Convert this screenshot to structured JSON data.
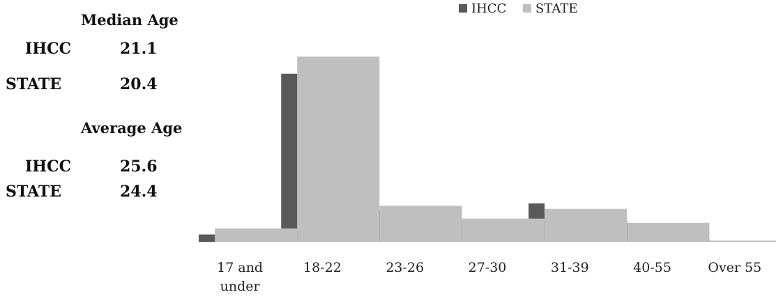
{
  "stats": {
    "median": {
      "heading": "Median Age",
      "ihcc_label": "IHCC",
      "ihcc_value": "21.1",
      "state_label": "STATE",
      "state_value": "20.4"
    },
    "average": {
      "heading": "Average Age",
      "ihcc_label": "IHCC",
      "ihcc_value": "25.6",
      "state_label": "STATE",
      "state_value": "24.4"
    }
  },
  "chart_data": {
    "type": "bar",
    "categories": [
      [
        "17 and",
        "under"
      ],
      [
        "18-22"
      ],
      [
        "23-26"
      ],
      [
        "27-30"
      ],
      [
        "31-39"
      ],
      [
        "40-55"
      ],
      [
        "Over 55"
      ]
    ],
    "series": [
      {
        "name": "IHCC",
        "color": "#595959",
        "values": [
          1.2,
          27.5,
          5.2,
          3.4,
          6.3,
          3.6,
          0.4
        ]
      },
      {
        "name": "STATE",
        "color": "#bfbfbf",
        "values": [
          2.2,
          30.3,
          5.9,
          3.8,
          5.4,
          3.1,
          0.2
        ]
      }
    ],
    "ylim": [
      0,
      35
    ],
    "legend_position": "top"
  }
}
